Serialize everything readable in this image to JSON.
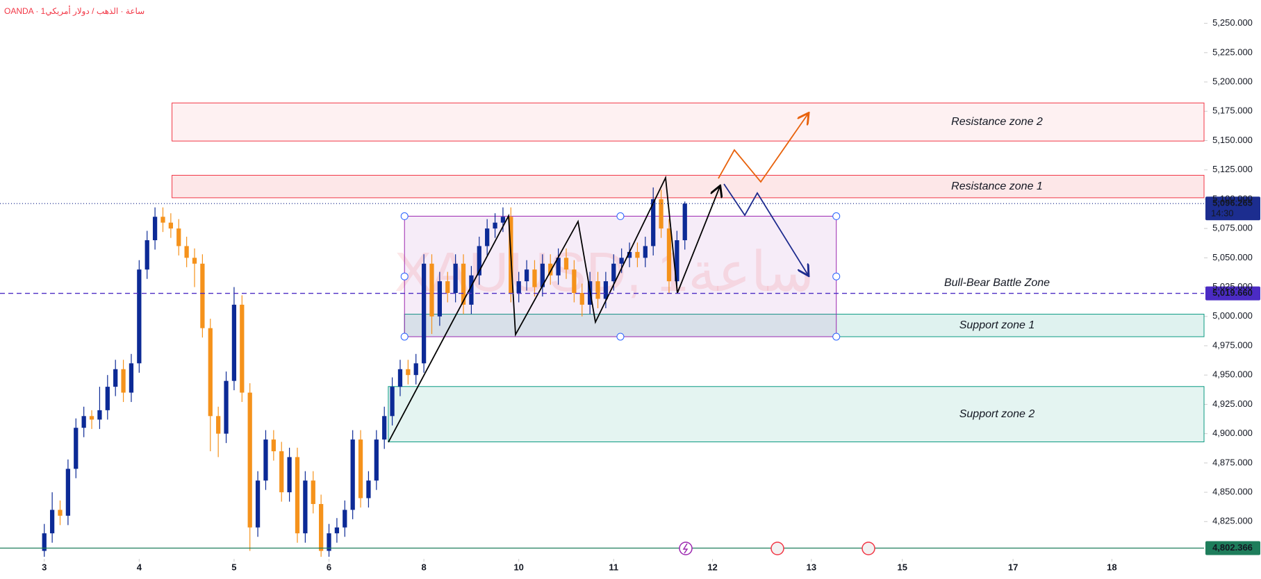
{
  "chart_data": {
    "type": "candlestick",
    "header": "OANDA · 1ساعة · الذهب / دولار أمريكي",
    "watermark": "XAUUSD, 1ساعة",
    "x": [
      0,
      2,
      4,
      6,
      8,
      10,
      12,
      14,
      16,
      18,
      20,
      22,
      24,
      26,
      28,
      30,
      32,
      34,
      36,
      38,
      40,
      42,
      44,
      46,
      48,
      50,
      52,
      54,
      56,
      58,
      60,
      62,
      64,
      66,
      68,
      70,
      72,
      74,
      76,
      78,
      80,
      82,
      84,
      86,
      88,
      90,
      92,
      94,
      96,
      98,
      100,
      102,
      104,
      106,
      108,
      110,
      112,
      114,
      116,
      118,
      120,
      122,
      124,
      126,
      128,
      130,
      132,
      134,
      136,
      138,
      140,
      142,
      144,
      146,
      148,
      150,
      152,
      154,
      156,
      158,
      160,
      162
    ],
    "open": [
      4800,
      4815,
      4835,
      4830,
      4870,
      4905,
      4915,
      4912,
      4920,
      4940,
      4955,
      4935,
      4960,
      5040,
      5065,
      5085,
      5080,
      5075,
      5060,
      5050,
      5045,
      4990,
      4915,
      4900,
      4945,
      5010,
      4935,
      4820,
      4860,
      4895,
      4885,
      4850,
      4880,
      4815,
      4860,
      4840,
      4800,
      4815,
      4820,
      4835,
      4895,
      4845,
      4860,
      4895,
      4915,
      4940,
      4955,
      4950,
      4960,
      5045,
      5000,
      5030,
      5020,
      5045,
      5010,
      5035,
      5060,
      5075,
      5080,
      5085,
      5020,
      5030,
      5040,
      5025,
      5045,
      5035,
      5050,
      5040,
      5020,
      5010,
      5030,
      5015,
      5030,
      5045,
      5050,
      5055,
      5050,
      5060,
      5100,
      5075,
      5030,
      5065
    ],
    "high": [
      4823,
      4850,
      4843,
      4878,
      4913,
      4923,
      4920,
      4940,
      4950,
      4963,
      4963,
      4968,
      5048,
      5073,
      5093,
      5093,
      5088,
      5083,
      5068,
      5058,
      5053,
      4998,
      4923,
      4953,
      5025,
      5018,
      4943,
      4868,
      4903,
      4903,
      4893,
      4888,
      4888,
      4868,
      4868,
      4848,
      4823,
      4828,
      4843,
      4903,
      4903,
      4868,
      4903,
      4923,
      4948,
      4963,
      4963,
      4968,
      5053,
      5053,
      5038,
      5038,
      5053,
      5053,
      5043,
      5068,
      5083,
      5088,
      5093,
      5093,
      5038,
      5048,
      5048,
      5053,
      5053,
      5058,
      5058,
      5048,
      5028,
      5038,
      5038,
      5038,
      5053,
      5058,
      5063,
      5063,
      5068,
      5110,
      5108,
      5083,
      5073,
      5098
    ],
    "low": [
      4795,
      4807,
      4822,
      4822,
      4862,
      4897,
      4904,
      4904,
      4912,
      4932,
      4927,
      4927,
      4952,
      5032,
      5057,
      5072,
      5067,
      5052,
      5042,
      5025,
      4982,
      4885,
      4880,
      4892,
      4937,
      4927,
      4800,
      4812,
      4852,
      4877,
      4842,
      4842,
      4807,
      4807,
      4832,
      4795,
      4795,
      4807,
      4812,
      4827,
      4837,
      4837,
      4852,
      4887,
      4907,
      4932,
      4942,
      4942,
      4952,
      4985,
      4992,
      5012,
      5012,
      5002,
      5002,
      5027,
      5052,
      5067,
      5072,
      5012,
      5012,
      5022,
      5017,
      5017,
      5027,
      5027,
      5032,
      5012,
      5000,
      5002,
      5007,
      5007,
      5022,
      5037,
      5042,
      5042,
      5042,
      5052,
      5067,
      5020,
      5022,
      5057
    ],
    "close": [
      4815,
      4835,
      4830,
      4870,
      4905,
      4915,
      4912,
      4920,
      4940,
      4955,
      4935,
      4960,
      5040,
      5065,
      5085,
      5080,
      5075,
      5060,
      5050,
      5045,
      4990,
      4915,
      4900,
      4945,
      5010,
      4935,
      4820,
      4860,
      4895,
      4885,
      4850,
      4880,
      4815,
      4860,
      4840,
      4800,
      4815,
      4820,
      4835,
      4895,
      4845,
      4860,
      4895,
      4915,
      4940,
      4955,
      4950,
      4960,
      5045,
      5000,
      5030,
      5020,
      5045,
      5010,
      5035,
      5060,
      5075,
      5080,
      5085,
      5020,
      5030,
      5040,
      5025,
      5045,
      5035,
      5050,
      5040,
      5020,
      5010,
      5030,
      5015,
      5030,
      5045,
      5050,
      5055,
      5050,
      5060,
      5100,
      5075,
      5030,
      5065,
      5096.265
    ],
    "up_color": "#0c2a96",
    "down_color": "#f5921b",
    "xlim": [
      -11.2,
      293.3
    ],
    "xticks": [
      {
        "value": 0,
        "label": "3"
      },
      {
        "value": 24,
        "label": "4"
      },
      {
        "value": 48,
        "label": "5"
      },
      {
        "value": 72,
        "label": "6"
      },
      {
        "value": 96,
        "label": "8"
      },
      {
        "value": 120,
        "label": "10"
      },
      {
        "value": 144,
        "label": "11"
      },
      {
        "value": 169,
        "label": "12"
      },
      {
        "value": 194,
        "label": "13"
      },
      {
        "value": 217,
        "label": "15"
      },
      {
        "value": 245,
        "label": "17"
      },
      {
        "value": 270,
        "label": "18"
      }
    ],
    "ylim": [
      4793.2,
      5269.9
    ],
    "yticks": [
      {
        "value": 4825,
        "label": "4,825.000"
      },
      {
        "value": 4850,
        "label": "4,850.000"
      },
      {
        "value": 4875,
        "label": "4,875.000"
      },
      {
        "value": 4900,
        "label": "4,900.000"
      },
      {
        "value": 4925,
        "label": "4,925.000"
      },
      {
        "value": 4950,
        "label": "4,950.000"
      },
      {
        "value": 4975,
        "label": "4,975.000"
      },
      {
        "value": 5000,
        "label": "5,000.000"
      },
      {
        "value": 5025,
        "label": "5,025.000"
      },
      {
        "value": 5050,
        "label": "5,050.000"
      },
      {
        "value": 5075,
        "label": "5,075.000"
      },
      {
        "value": 5100,
        "label": "5,100.000"
      },
      {
        "value": 5125,
        "label": "5,125.000"
      },
      {
        "value": 5150,
        "label": "5,150.000"
      },
      {
        "value": 5175,
        "label": "5,175.000"
      },
      {
        "value": 5200,
        "label": "5,200.000"
      },
      {
        "value": 5225,
        "label": "5,225.000"
      },
      {
        "value": 5250,
        "label": "5,250.000"
      }
    ],
    "zones": [
      {
        "label": "Resistance zone 2",
        "low": 5149.6,
        "high": 5182.1,
        "from": 32.3,
        "fill": "rgba(242,54,69,0.07)",
        "stroke": "#f23645"
      },
      {
        "label": "Resistance zone 1",
        "low": 5101.2,
        "high": 5120.4,
        "from": 32.3,
        "fill": "rgba(242,54,69,0.12)",
        "stroke": "#f23645"
      },
      {
        "label": "Support zone 1",
        "low": 4982.7,
        "high": 5001.9,
        "from": 91.1,
        "fill": "rgba(8,153,129,0.13)",
        "stroke": "#089981"
      },
      {
        "label": "Support zone 2",
        "low": 4893,
        "high": 4940.2,
        "from": 87,
        "fill": "rgba(8,153,129,0.11)",
        "stroke": "#089981"
      }
    ],
    "box": {
      "from": 91.1,
      "to": 200.3,
      "low": 4982.7,
      "high": 5085.5
    },
    "lines": [
      {
        "value": 5096.265,
        "label": "5,096.265",
        "sub": "14:30",
        "color": "#1c2d8f",
        "dash": "1 3"
      },
      {
        "value": 5019.66,
        "label": "5,019.660",
        "name": "Bull-Bear Battle Zone",
        "color": "#4b2bc4",
        "dash": "7 5"
      },
      {
        "value": 4802.366,
        "label": "4,802.366",
        "color": "#1e7d5b",
        "dash": "none"
      }
    ]
  }
}
